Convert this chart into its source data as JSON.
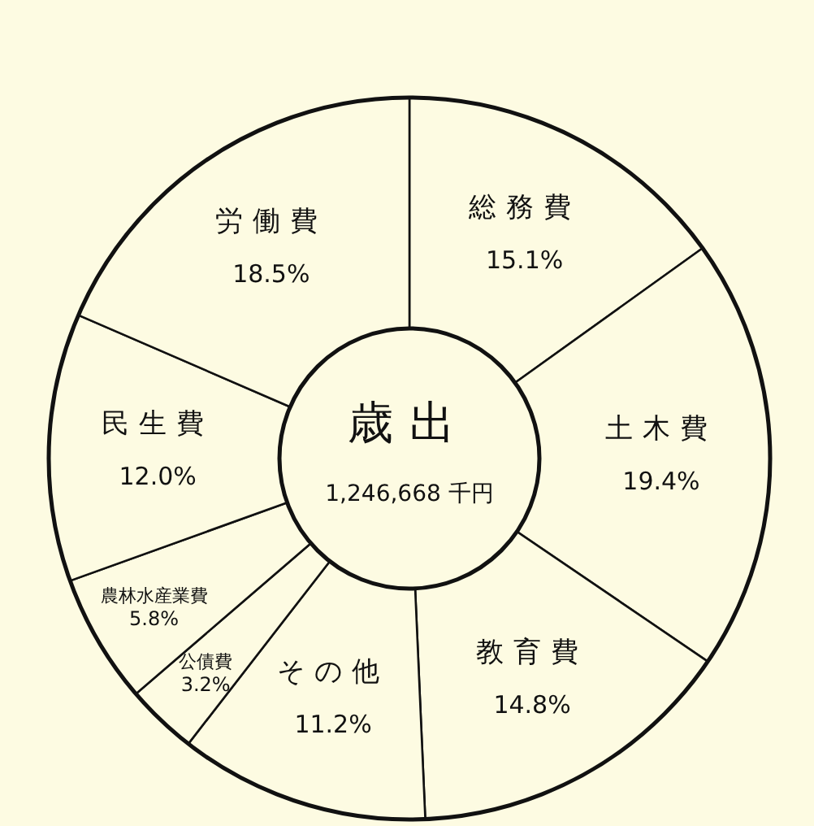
{
  "chart_data": {
    "type": "donut",
    "title": "歳出",
    "subtitle": "1,246,668 千円",
    "categories": [
      "総務費",
      "土木費",
      "教育費",
      "その他",
      "公債費",
      "農林水産業費",
      "民生費",
      "労働費"
    ],
    "values": [
      15.1,
      19.4,
      14.8,
      11.2,
      3.2,
      5.8,
      12.0,
      18.5
    ],
    "value_labels": [
      "15.1%",
      "19.4%",
      "14.8%",
      "11.2%",
      "3.2%",
      "5.8%",
      "12.0%",
      "18.5%"
    ],
    "colors": [
      "#fdfbe2",
      "#fdfbe2",
      "#fdfbe2",
      "#fdfbe2",
      "#fdfbe2",
      "#fdfbe2",
      "#fdfbe2",
      "#fdfbe2"
    ]
  }
}
